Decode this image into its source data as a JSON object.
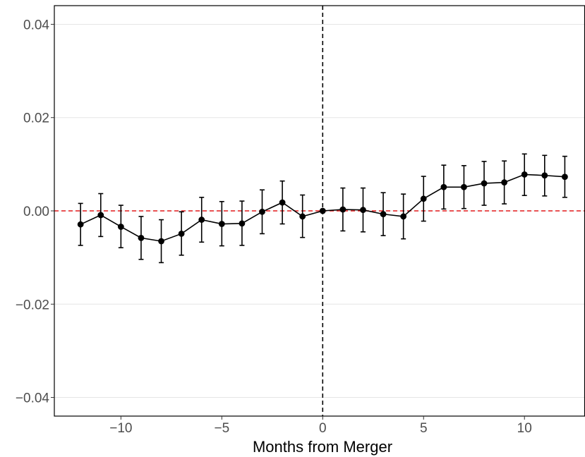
{
  "chart_data": {
    "type": "line",
    "title": "",
    "xlabel": "Months from Merger",
    "ylabel": "",
    "xlim": [
      -13.3,
      13
    ],
    "ylim": [
      -0.044,
      0.044
    ],
    "x_ticks": [
      -10,
      -5,
      0,
      5,
      10
    ],
    "x_tick_labels": [
      "−10",
      "−5",
      "0",
      "5",
      "10"
    ],
    "y_ticks": [
      -0.04,
      -0.02,
      0.0,
      0.02,
      0.04
    ],
    "y_tick_labels": [
      "−0.04",
      "−0.02",
      "0.00",
      "0.02",
      "0.04"
    ],
    "grid": "horizontal major",
    "reference_lines": [
      {
        "orientation": "horizontal",
        "value": 0,
        "style": "dashed",
        "color": "#e41a1c"
      },
      {
        "orientation": "vertical",
        "value": 0,
        "style": "dashed",
        "color": "#000000"
      }
    ],
    "series": [
      {
        "x": [
          -12,
          -11,
          -10,
          -9,
          -8,
          -7,
          -6,
          -5,
          -4,
          -3,
          -2,
          -1,
          0,
          1,
          2,
          3,
          4,
          5,
          6,
          7,
          8,
          9,
          10,
          11,
          12
        ],
        "y": [
          -0.0029,
          -0.0009,
          -0.0034,
          -0.0058,
          -0.0065,
          -0.0049,
          -0.0019,
          -0.0028,
          -0.0027,
          -0.0002,
          0.0018,
          -0.0012,
          0.0,
          0.0003,
          0.0002,
          -0.0007,
          -0.0012,
          0.0026,
          0.0051,
          0.0051,
          0.0059,
          0.0061,
          0.0078,
          0.0076,
          0.0073
        ],
        "lower": [
          -0.0074,
          -0.0055,
          -0.0079,
          -0.0104,
          -0.0111,
          -0.0095,
          -0.0067,
          -0.0075,
          -0.0074,
          -0.0049,
          -0.0028,
          -0.0057,
          0.0,
          -0.0043,
          -0.0045,
          -0.0053,
          -0.006,
          -0.0022,
          0.0004,
          0.0005,
          0.0012,
          0.0015,
          0.0033,
          0.0032,
          0.0029
        ],
        "upper": [
          0.0016,
          0.0037,
          0.0012,
          -0.0012,
          -0.0019,
          -0.0002,
          0.0029,
          0.002,
          0.0021,
          0.0045,
          0.0064,
          0.0034,
          0.0,
          0.0049,
          0.0049,
          0.0039,
          0.0036,
          0.0074,
          0.0098,
          0.0097,
          0.0106,
          0.0107,
          0.0122,
          0.0119,
          0.0117
        ]
      }
    ]
  },
  "colors": {
    "series": "#000000",
    "zero_line": "#e41a1c",
    "merger_line": "#000000",
    "grid": "#e5e5e5",
    "tick_label": "#4d4d4d"
  }
}
